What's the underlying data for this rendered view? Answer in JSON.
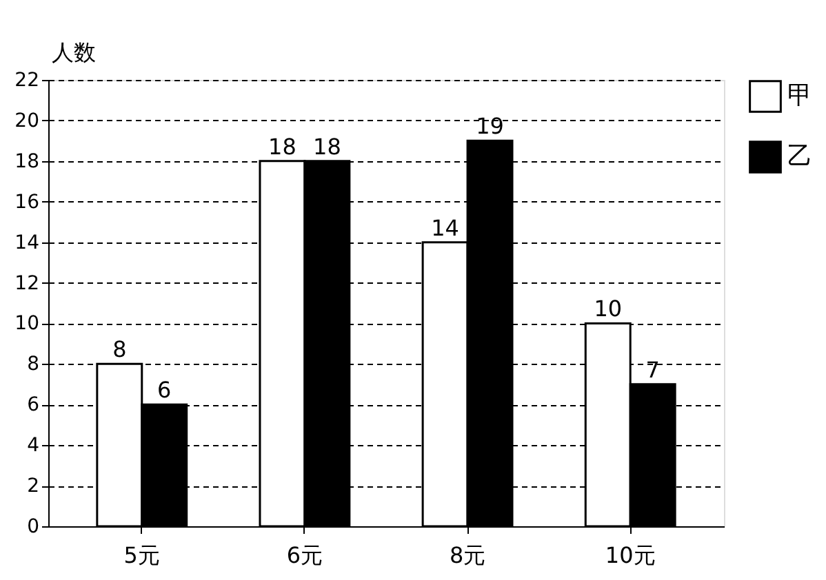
{
  "chart_data": {
    "type": "bar",
    "ylabel": "人数",
    "categories": [
      "5元",
      "6元",
      "8元",
      "10元"
    ],
    "series": [
      {
        "name": "甲",
        "color": "#ffffff",
        "values": [
          8,
          18,
          14,
          10
        ]
      },
      {
        "name": "乙",
        "color": "#000000",
        "values": [
          6,
          18,
          19,
          7
        ]
      }
    ],
    "ylim": [
      0,
      22
    ],
    "yticks": [
      0,
      2,
      4,
      6,
      8,
      10,
      12,
      14,
      16,
      18,
      20,
      22
    ],
    "grid": "y",
    "legend": "top right",
    "data_labels": true
  }
}
